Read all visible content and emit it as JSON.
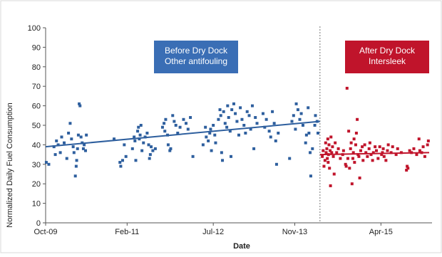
{
  "chart_data": {
    "type": "scatter",
    "xlabel": "Date",
    "ylabel": "Normalized Daily Fuel Consumption",
    "ylim": [
      0,
      100
    ],
    "yticks": [
      0,
      10,
      20,
      30,
      40,
      50,
      60,
      70,
      80,
      90,
      100
    ],
    "xlim": [
      "2009-10-01",
      "2016-02-01"
    ],
    "xticks": [
      {
        "date": "2009-10-01",
        "label": "Oct-09"
      },
      {
        "date": "2011-02-01",
        "label": "Feb-11"
      },
      {
        "date": "2012-07-01",
        "label": "Jul-12"
      },
      {
        "date": "2013-11-01",
        "label": "Nov-13"
      },
      {
        "date": "2015-04-01",
        "label": "Apr-15"
      }
    ],
    "divider_date": "2014-04-01",
    "annotations": [
      {
        "lines": [
          "Before Dry Dock",
          "Other antifouling"
        ],
        "color": "#3a6eb5"
      },
      {
        "lines": [
          "After Dry Dock",
          "Intersleek"
        ],
        "color": "#c0142b"
      }
    ],
    "series": [
      {
        "color": "#2e5f9e",
        "trend": {
          "start": [
            "2009-10-01",
            39
          ],
          "end": [
            "2014-04-01",
            52
          ]
        },
        "points": [
          [
            "2009-10-05",
            31
          ],
          [
            "2009-10-20",
            30
          ],
          [
            "2009-11-20",
            39
          ],
          [
            "2009-11-28",
            35
          ],
          [
            "2009-12-05",
            42
          ],
          [
            "2009-12-15",
            40
          ],
          [
            "2009-12-28",
            36
          ],
          [
            "2010-01-05",
            44
          ],
          [
            "2010-01-20",
            41
          ],
          [
            "2010-02-05",
            33
          ],
          [
            "2010-02-15",
            46
          ],
          [
            "2010-02-25",
            51
          ],
          [
            "2010-03-05",
            43
          ],
          [
            "2010-03-15",
            39
          ],
          [
            "2010-03-20",
            36
          ],
          [
            "2010-03-28",
            24
          ],
          [
            "2010-04-02",
            29
          ],
          [
            "2010-04-05",
            32
          ],
          [
            "2010-04-10",
            38
          ],
          [
            "2010-04-15",
            45
          ],
          [
            "2010-04-20",
            61
          ],
          [
            "2010-04-25",
            60
          ],
          [
            "2010-05-01",
            44
          ],
          [
            "2010-05-08",
            41
          ],
          [
            "2010-05-15",
            38
          ],
          [
            "2010-05-20",
            40
          ],
          [
            "2010-05-28",
            37
          ],
          [
            "2010-06-02",
            45
          ],
          [
            "2010-11-15",
            43
          ],
          [
            "2010-12-20",
            31
          ],
          [
            "2010-12-25",
            29
          ],
          [
            "2011-01-05",
            32
          ],
          [
            "2011-01-15",
            40
          ],
          [
            "2011-01-25",
            34
          ],
          [
            "2011-03-05",
            38
          ],
          [
            "2011-03-15",
            44
          ],
          [
            "2011-03-20",
            42
          ],
          [
            "2011-03-25",
            32
          ],
          [
            "2011-04-05",
            47
          ],
          [
            "2011-04-10",
            49
          ],
          [
            "2011-04-15",
            43
          ],
          [
            "2011-04-20",
            45
          ],
          [
            "2011-04-25",
            50
          ],
          [
            "2011-05-01",
            37
          ],
          [
            "2011-05-10",
            41
          ],
          [
            "2011-05-20",
            44
          ],
          [
            "2011-06-01",
            46
          ],
          [
            "2011-06-10",
            40
          ],
          [
            "2011-06-15",
            33
          ],
          [
            "2011-06-20",
            35
          ],
          [
            "2011-06-25",
            39
          ],
          [
            "2011-07-05",
            37
          ],
          [
            "2011-07-20",
            38
          ],
          [
            "2011-09-01",
            49
          ],
          [
            "2011-09-10",
            51
          ],
          [
            "2011-09-15",
            47
          ],
          [
            "2011-09-20",
            53
          ],
          [
            "2011-10-01",
            45
          ],
          [
            "2011-10-05",
            40
          ],
          [
            "2011-10-15",
            37
          ],
          [
            "2011-10-20",
            38
          ],
          [
            "2011-11-01",
            55
          ],
          [
            "2011-11-10",
            52
          ],
          [
            "2011-11-20",
            50
          ],
          [
            "2011-12-01",
            46
          ],
          [
            "2011-12-15",
            49
          ],
          [
            "2012-01-05",
            53
          ],
          [
            "2012-01-20",
            51
          ],
          [
            "2012-02-01",
            48
          ],
          [
            "2012-02-15",
            54
          ],
          [
            "2012-03-01",
            34
          ],
          [
            "2012-05-01",
            40
          ],
          [
            "2012-05-15",
            49
          ],
          [
            "2012-05-20",
            44
          ],
          [
            "2012-06-01",
            42
          ],
          [
            "2012-06-10",
            46
          ],
          [
            "2012-06-15",
            48
          ],
          [
            "2012-06-20",
            37
          ],
          [
            "2012-07-01",
            50
          ],
          [
            "2012-07-10",
            45
          ],
          [
            "2012-07-15",
            41
          ],
          [
            "2012-08-01",
            53
          ],
          [
            "2012-08-10",
            58
          ],
          [
            "2012-08-15",
            55
          ],
          [
            "2012-08-20",
            36
          ],
          [
            "2012-08-25",
            32
          ],
          [
            "2012-09-01",
            57
          ],
          [
            "2012-09-10",
            51
          ],
          [
            "2012-09-20",
            49
          ],
          [
            "2012-09-25",
            60
          ],
          [
            "2012-10-01",
            54
          ],
          [
            "2012-10-10",
            47
          ],
          [
            "2012-10-15",
            34
          ],
          [
            "2012-10-20",
            58
          ],
          [
            "2012-11-01",
            61
          ],
          [
            "2012-11-10",
            56
          ],
          [
            "2012-11-20",
            52
          ],
          [
            "2012-12-01",
            45
          ],
          [
            "2012-12-10",
            59
          ],
          [
            "2012-12-20",
            53
          ],
          [
            "2013-01-01",
            50
          ],
          [
            "2013-01-10",
            46
          ],
          [
            "2013-01-20",
            57
          ],
          [
            "2013-02-01",
            55
          ],
          [
            "2013-02-10",
            48
          ],
          [
            "2013-02-20",
            60
          ],
          [
            "2013-03-01",
            38
          ],
          [
            "2013-03-10",
            54
          ],
          [
            "2013-03-20",
            51
          ],
          [
            "2013-04-25",
            56
          ],
          [
            "2013-05-05",
            49
          ],
          [
            "2013-05-15",
            53
          ],
          [
            "2013-06-01",
            47
          ],
          [
            "2013-06-10",
            44
          ],
          [
            "2013-06-20",
            57
          ],
          [
            "2013-07-01",
            51
          ],
          [
            "2013-07-10",
            42
          ],
          [
            "2013-07-15",
            30
          ],
          [
            "2013-07-25",
            46
          ],
          [
            "2013-10-01",
            33
          ],
          [
            "2013-10-15",
            52
          ],
          [
            "2013-10-25",
            55
          ],
          [
            "2013-11-05",
            48
          ],
          [
            "2013-11-10",
            61
          ],
          [
            "2013-11-20",
            58
          ],
          [
            "2013-12-01",
            53
          ],
          [
            "2013-12-10",
            56
          ],
          [
            "2013-12-20",
            50
          ],
          [
            "2014-01-05",
            41
          ],
          [
            "2014-01-10",
            45
          ],
          [
            "2014-01-20",
            59
          ],
          [
            "2014-01-25",
            46
          ],
          [
            "2014-02-01",
            36
          ],
          [
            "2014-02-05",
            24
          ],
          [
            "2014-02-15",
            38
          ],
          [
            "2014-03-01",
            50
          ],
          [
            "2014-03-05",
            55
          ],
          [
            "2014-03-15",
            52
          ],
          [
            "2014-03-20",
            46
          ]
        ]
      },
      {
        "color": "#c0142b",
        "trend": {
          "start": [
            "2014-04-01",
            35
          ],
          "end": [
            "2016-01-15",
            36
          ]
        },
        "points": [
          [
            "2014-04-15",
            34
          ],
          [
            "2014-04-20",
            37
          ],
          [
            "2014-04-25",
            29
          ],
          [
            "2014-05-01",
            32
          ],
          [
            "2014-05-05",
            41
          ],
          [
            "2014-05-08",
            36
          ],
          [
            "2014-05-12",
            38
          ],
          [
            "2014-05-15",
            33
          ],
          [
            "2014-05-18",
            43
          ],
          [
            "2014-05-20",
            31
          ],
          [
            "2014-05-22",
            35
          ],
          [
            "2014-05-25",
            40
          ],
          [
            "2014-05-28",
            28
          ],
          [
            "2014-06-01",
            37
          ],
          [
            "2014-06-03",
            19
          ],
          [
            "2014-06-06",
            44
          ],
          [
            "2014-06-10",
            36
          ],
          [
            "2014-06-15",
            39
          ],
          [
            "2014-06-20",
            34
          ],
          [
            "2014-06-25",
            25
          ],
          [
            "2014-07-01",
            41
          ],
          [
            "2014-07-10",
            36
          ],
          [
            "2014-07-20",
            38
          ],
          [
            "2014-08-01",
            33
          ],
          [
            "2014-08-15",
            35
          ],
          [
            "2014-08-20",
            37
          ],
          [
            "2014-09-01",
            30
          ],
          [
            "2014-09-05",
            29
          ],
          [
            "2014-09-10",
            69
          ],
          [
            "2014-09-15",
            33
          ],
          [
            "2014-09-20",
            47
          ],
          [
            "2014-09-25",
            28
          ],
          [
            "2014-10-01",
            38
          ],
          [
            "2014-10-05",
            41
          ],
          [
            "2014-10-10",
            20
          ],
          [
            "2014-10-15",
            33
          ],
          [
            "2014-10-18",
            36
          ],
          [
            "2014-10-22",
            43
          ],
          [
            "2014-10-25",
            31
          ],
          [
            "2014-11-01",
            40
          ],
          [
            "2014-11-05",
            46
          ],
          [
            "2014-11-10",
            53
          ],
          [
            "2014-11-15",
            35
          ],
          [
            "2014-11-20",
            34
          ],
          [
            "2014-11-25",
            23
          ],
          [
            "2014-12-01",
            37
          ],
          [
            "2014-12-10",
            39
          ],
          [
            "2014-12-15",
            32
          ],
          [
            "2014-12-25",
            40
          ],
          [
            "2015-01-01",
            36
          ],
          [
            "2015-01-10",
            34
          ],
          [
            "2015-01-20",
            38
          ],
          [
            "2015-01-25",
            41
          ],
          [
            "2015-02-01",
            35
          ],
          [
            "2015-02-10",
            32
          ],
          [
            "2015-02-15",
            36
          ],
          [
            "2015-02-25",
            39
          ],
          [
            "2015-03-05",
            37
          ],
          [
            "2015-03-15",
            33
          ],
          [
            "2015-03-25",
            39
          ],
          [
            "2015-04-05",
            35
          ],
          [
            "2015-04-10",
            36
          ],
          [
            "2015-04-15",
            38
          ],
          [
            "2015-04-20",
            34
          ],
          [
            "2015-05-01",
            32
          ],
          [
            "2015-05-10",
            37
          ],
          [
            "2015-05-15",
            40
          ],
          [
            "2015-06-01",
            36
          ],
          [
            "2015-06-10",
            39
          ],
          [
            "2015-07-01",
            35
          ],
          [
            "2015-07-10",
            38
          ],
          [
            "2015-08-01",
            36
          ],
          [
            "2015-09-01",
            27
          ],
          [
            "2015-09-05",
            29
          ],
          [
            "2015-09-10",
            28
          ],
          [
            "2015-09-20",
            37
          ],
          [
            "2015-10-01",
            36
          ],
          [
            "2015-10-15",
            38
          ],
          [
            "2015-11-01",
            35
          ],
          [
            "2015-11-15",
            43
          ],
          [
            "2015-11-20",
            37
          ],
          [
            "2015-12-01",
            36
          ],
          [
            "2015-12-10",
            39
          ],
          [
            "2015-12-20",
            34
          ],
          [
            "2016-01-05",
            40
          ],
          [
            "2016-01-10",
            42
          ]
        ]
      }
    ]
  }
}
